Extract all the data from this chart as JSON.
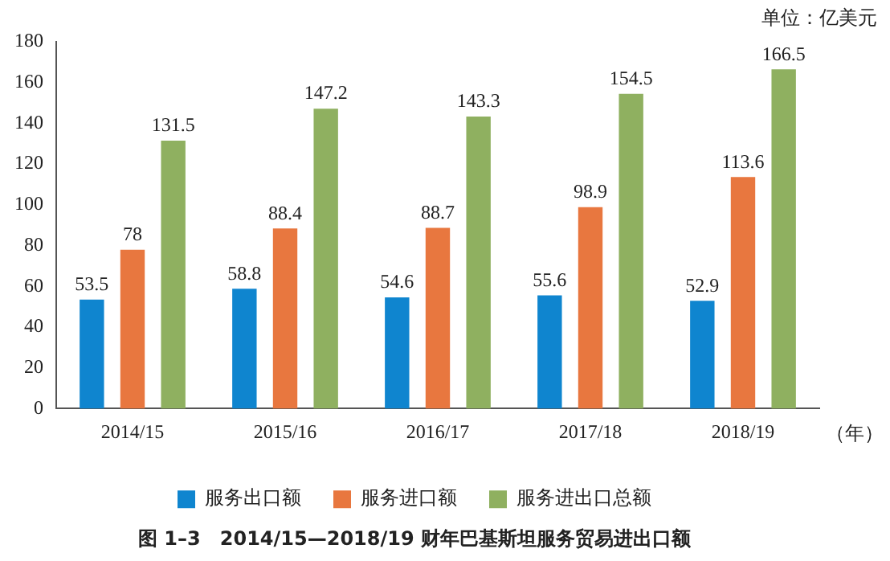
{
  "chart_data": {
    "type": "bar",
    "title": "图 1–3　2014/15—2018/19 财年巴基斯坦服务贸易进出口额",
    "xlabel": "（年）",
    "ylabel": "单位：亿美元",
    "categories": [
      "2014/15",
      "2015/16",
      "2016/17",
      "2017/18",
      "2018/19"
    ],
    "series": [
      {
        "name": "服务出口额",
        "color": "#0f85cf",
        "values": [
          53.5,
          58.8,
          54.6,
          55.6,
          52.9
        ]
      },
      {
        "name": "服务进口额",
        "color": "#e8773f",
        "values": [
          78,
          88.4,
          88.7,
          98.9,
          113.6
        ]
      },
      {
        "name": "服务进出口总额",
        "color": "#8fb060",
        "values": [
          131.5,
          147.2,
          143.3,
          154.5,
          166.5
        ]
      }
    ],
    "ylim": [
      0,
      180
    ],
    "yticks": [
      0,
      20,
      40,
      60,
      80,
      100,
      120,
      140,
      160,
      180
    ],
    "grid": false,
    "legend": "bottom",
    "data_labels": true
  }
}
